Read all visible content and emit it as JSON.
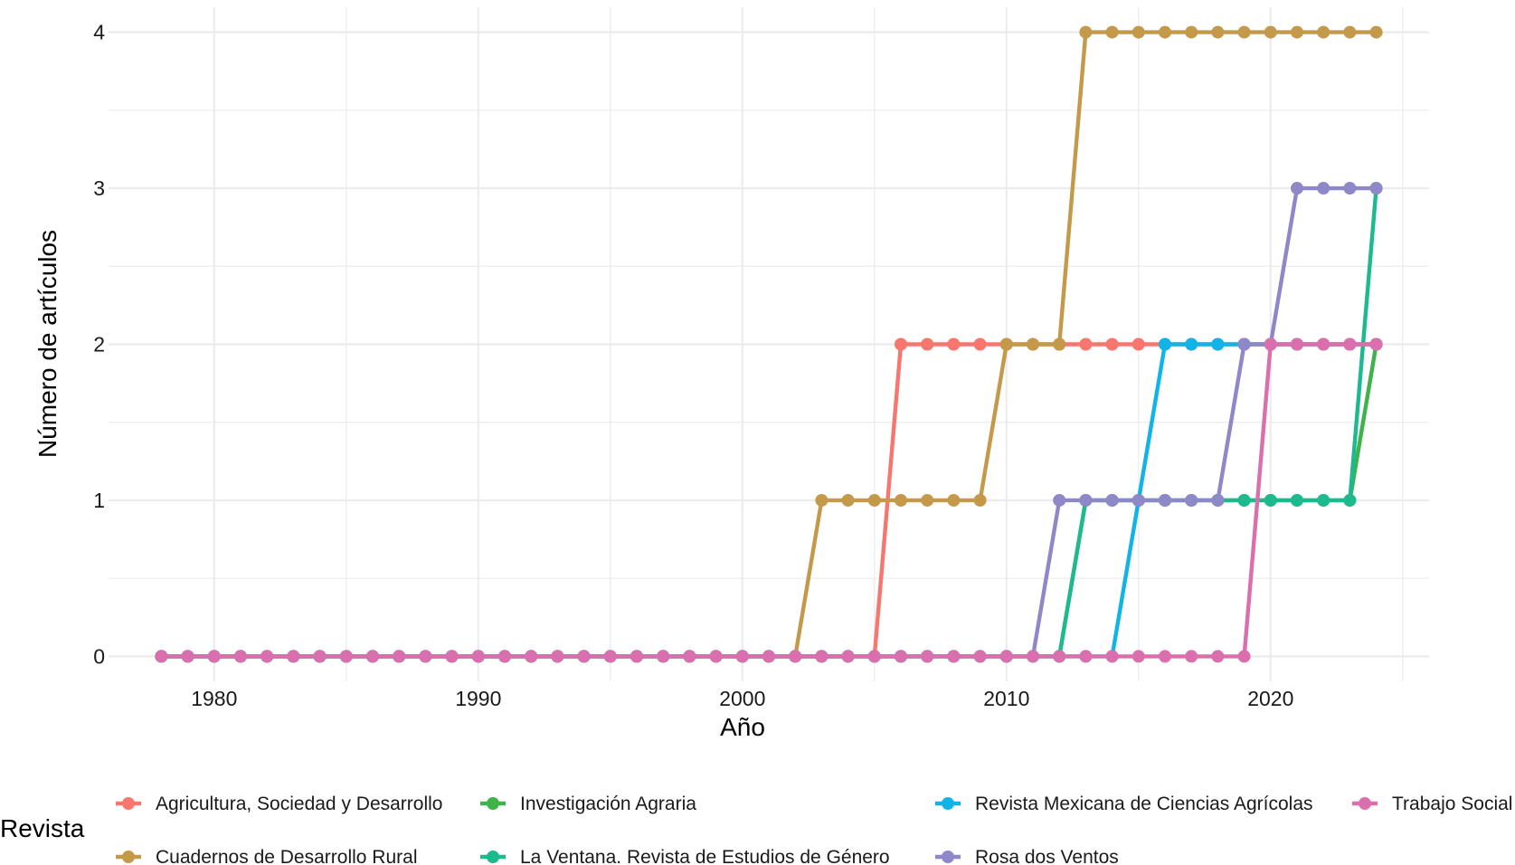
{
  "chart_data": {
    "type": "line",
    "title": "",
    "xlabel": "Año",
    "ylabel": "Número de artículos",
    "xlim": [
      1976,
      2026
    ],
    "ylim": [
      -0.16,
      4.16
    ],
    "x_ticks": [
      1980,
      1990,
      2000,
      2010,
      2020
    ],
    "y_ticks": [
      0,
      1,
      2,
      3,
      4
    ],
    "grid": true,
    "legend": {
      "title": "Revista",
      "position": "bottom",
      "order": [
        "Agricultura, Sociedad y Desarrollo",
        "Cuadernos de Desarrollo Rural",
        "Investigación Agraria",
        "La Ventana. Revista de Estudios de Género",
        "Revista Mexicana de Ciencias Agrícolas",
        "Rosa dos Ventos",
        "Trabajo Social"
      ]
    },
    "x_start": 1978,
    "x_end": 2024,
    "series": [
      {
        "name": "Agricultura, Sociedad y Desarrollo",
        "color": "#F8766D",
        "steps": [
          [
            1978,
            0
          ],
          [
            2006,
            2
          ]
        ]
      },
      {
        "name": "Cuadernos de Desarrollo Rural",
        "color": "#C49A4A",
        "steps": [
          [
            1978,
            0
          ],
          [
            2003,
            1
          ],
          [
            2010,
            2
          ],
          [
            2013,
            4
          ]
        ]
      },
      {
        "name": "Investigación Agraria",
        "color": "#3DB34A",
        "steps": [
          [
            1978,
            0
          ],
          [
            2013,
            1
          ],
          [
            2024,
            2
          ]
        ]
      },
      {
        "name": "La Ventana. Revista de Estudios de Género",
        "color": "#1DB98F",
        "steps": [
          [
            1978,
            0
          ],
          [
            2013,
            1
          ],
          [
            2024,
            3
          ]
        ]
      },
      {
        "name": "Revista Mexicana de Ciencias Agrícolas",
        "color": "#12B3E6",
        "steps": [
          [
            1978,
            0
          ],
          [
            2015,
            1
          ],
          [
            2016,
            2
          ]
        ]
      },
      {
        "name": "Rosa dos Ventos",
        "color": "#8E87C8",
        "steps": [
          [
            1978,
            0
          ],
          [
            2012,
            1
          ],
          [
            2019,
            2
          ],
          [
            2021,
            3
          ]
        ]
      },
      {
        "name": "Trabajo Social",
        "color": "#DB6FAE",
        "steps": [
          [
            1978,
            0
          ],
          [
            2020,
            2
          ]
        ]
      }
    ]
  }
}
